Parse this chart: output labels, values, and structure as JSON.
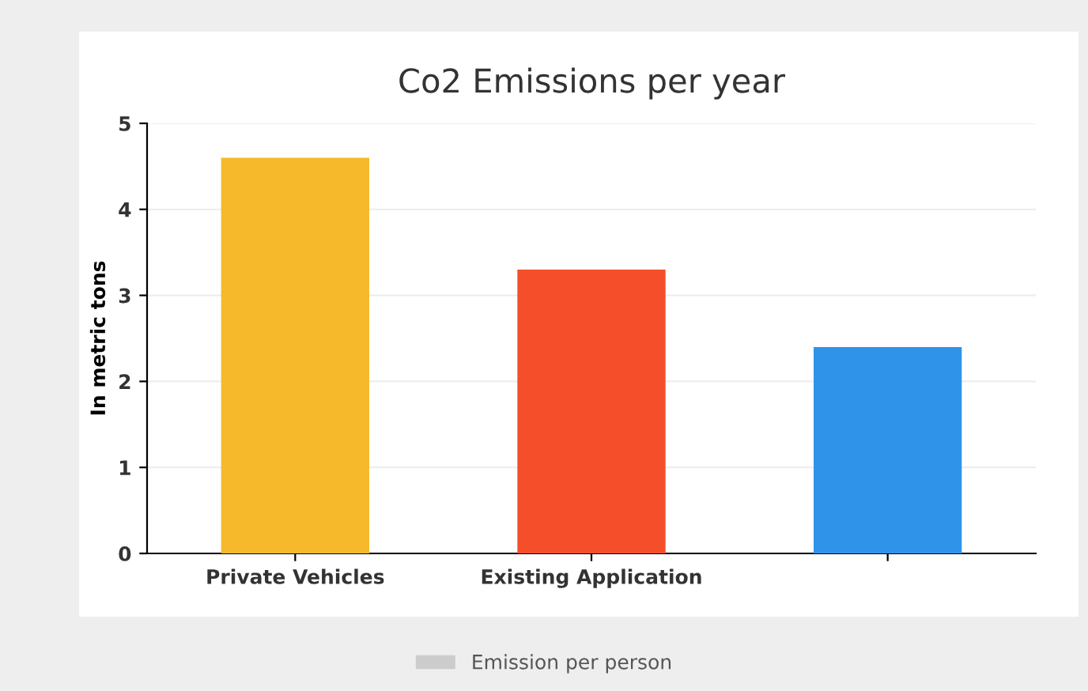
{
  "chart_data": {
    "type": "bar",
    "title": "Co2 Emissions per year",
    "ylabel": "In metric tons",
    "categories": [
      "Private Vehicles",
      "Existing Application",
      null
    ],
    "series": [
      {
        "name": "Emission per person",
        "color": "#cccccc",
        "colors": [
          "#f6b92b",
          "#f44e2a",
          "#2f93ea"
        ],
        "values": [
          4.6,
          3.3,
          2.4
        ]
      }
    ],
    "ylim": [
      0,
      5
    ],
    "yticks": [
      0,
      1,
      2,
      3,
      4,
      5
    ],
    "grid": "y",
    "legend": "bottom"
  }
}
